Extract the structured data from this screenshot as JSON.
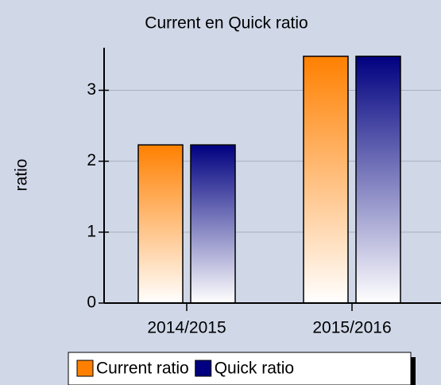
{
  "chart_data": {
    "type": "bar",
    "title": "Current en Quick ratio",
    "y_label": "ratio",
    "categories": [
      "2014/2015",
      "2015/2016"
    ],
    "series": [
      {
        "name": "Current ratio",
        "color": "#ff8000",
        "values": [
          2.23,
          3.48
        ]
      },
      {
        "name": "Quick ratio",
        "color": "#000080",
        "values": [
          2.23,
          3.48
        ]
      }
    ],
    "ylim": [
      0,
      3.6
    ],
    "yticks": [
      0,
      1,
      2,
      3
    ],
    "grid": true
  }
}
